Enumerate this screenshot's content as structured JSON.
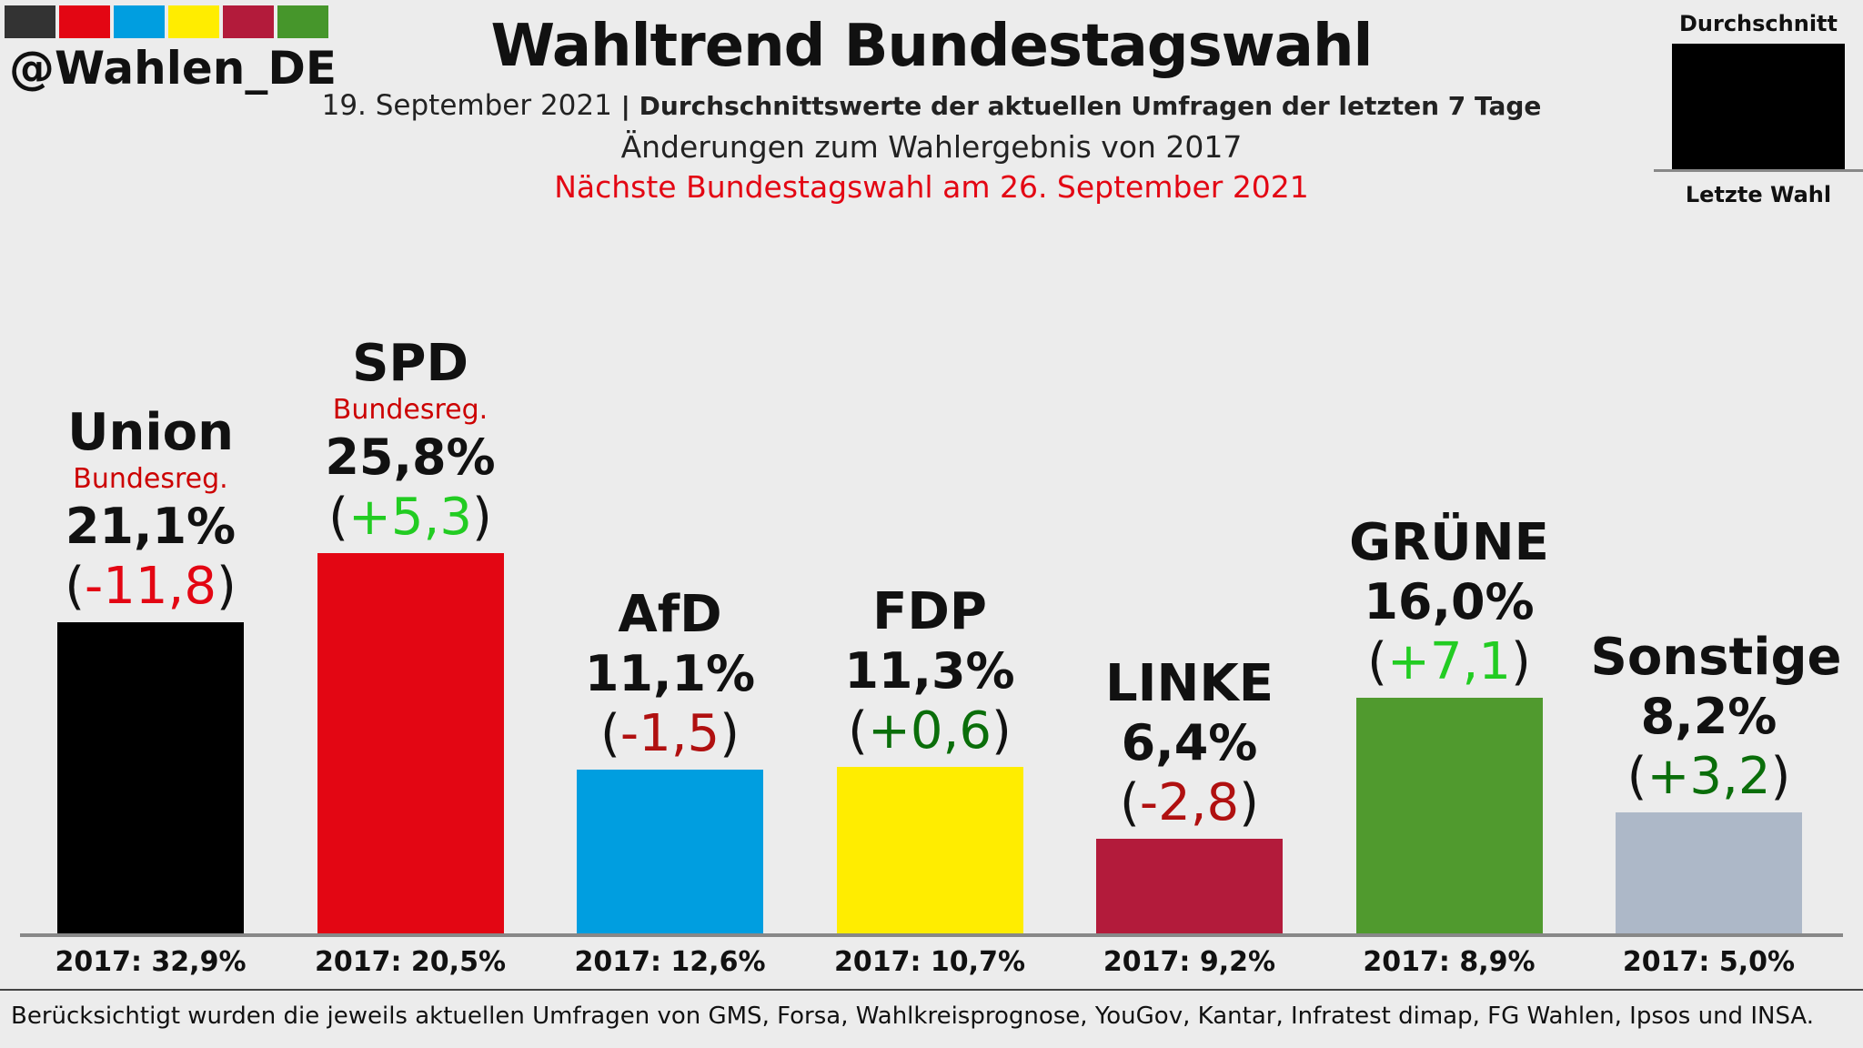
{
  "header": {
    "handle": "@Wahlen_DE",
    "strip_colors": [
      "#333333",
      "#e30613",
      "#009ee0",
      "#ffed00",
      "#b31b3b",
      "#46962b"
    ],
    "title": "Wahltrend Bundestagswahl",
    "date": "19. September 2021",
    "separator": " | ",
    "subtitle_bold": "Durchschnittswerte der aktuellen Umfragen der letzten 7 Tage",
    "subtitle2": "Änderungen zum Wahlergebnis von 2017",
    "subtitle3": "Nächste Bundestagswahl am 26. September 2021"
  },
  "legend": {
    "top_label": "Durchschnitt",
    "bottom_label": "Letzte Wahl"
  },
  "chart_data": {
    "type": "bar",
    "categories": [
      "Union",
      "SPD",
      "AfD",
      "FDP",
      "LINKE",
      "GRÜNE",
      "Sonstige"
    ],
    "values": [
      21.1,
      25.8,
      11.1,
      11.3,
      6.4,
      16.0,
      8.2
    ],
    "value_labels": [
      "21,1%",
      "25,8%",
      "11,1%",
      "11,3%",
      "6,4%",
      "16,0%",
      "8,2%"
    ],
    "changes": [
      -11.8,
      5.3,
      -1.5,
      0.6,
      -2.8,
      7.1,
      3.2
    ],
    "change_labels": [
      "-11,8",
      "+5,3",
      "-1,5",
      "+0,6",
      "-2,8",
      "+7,1",
      "+3,2"
    ],
    "change_colors": [
      "#e30613",
      "#22cc22",
      "#b01010",
      "#0a6e0a",
      "#b01010",
      "#22cc22",
      "#0a6e0a"
    ],
    "government_label": "Bundesreg.",
    "government": [
      true,
      true,
      false,
      false,
      false,
      false,
      false
    ],
    "previous_labels": [
      "2017: 32,9%",
      "2017: 20,5%",
      "2017: 12,6%",
      "2017: 10,7%",
      "2017: 9,2%",
      "2017: 8,9%",
      "2017: 5,0%"
    ],
    "previous": [
      32.9,
      20.5,
      12.6,
      10.7,
      9.2,
      8.9,
      5.0
    ],
    "colors": [
      "#000000",
      "#e30613",
      "#009ee0",
      "#ffed00",
      "#b31b3b",
      "#509a2e",
      "#adb8c8"
    ],
    "ylim": [
      0,
      40
    ],
    "grid": false
  },
  "footer": {
    "text": "Berücksichtigt wurden die jeweils aktuellen Umfragen von GMS, Forsa, Wahlkreisprognose, YouGov, Kantar, Infratest dimap, FG Wahlen, Ipsos und INSA."
  }
}
